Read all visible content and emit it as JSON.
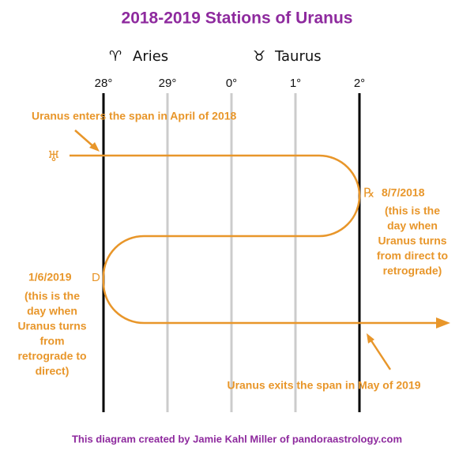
{
  "title": "2018-2019 Stations of Uranus",
  "signs": [
    {
      "glyph": "♈",
      "name": "Aries"
    },
    {
      "glyph": "♉",
      "name": "Taurus"
    }
  ],
  "degrees": [
    "28°",
    "29°",
    "0°",
    "1°",
    "2°"
  ],
  "planet_glyph": "♅",
  "entry_note": "Uranus enters the span in April of 2018",
  "retrograde_station": {
    "glyph": "℞",
    "date": "8/7/2018",
    "note": [
      "(this is the",
      "day when",
      "Uranus turns",
      "from direct to",
      "retrograde)"
    ]
  },
  "direct_station": {
    "glyph": "D",
    "date": "1/6/2019",
    "note": [
      "(this is the",
      "day when",
      "Uranus turns",
      "from",
      "retrograde to",
      "direct)"
    ]
  },
  "exit_note": "Uranus exits the span in May of 2019",
  "footer": "This diagram created by Jamie Kahl Miller of pandoraastrology.com"
}
